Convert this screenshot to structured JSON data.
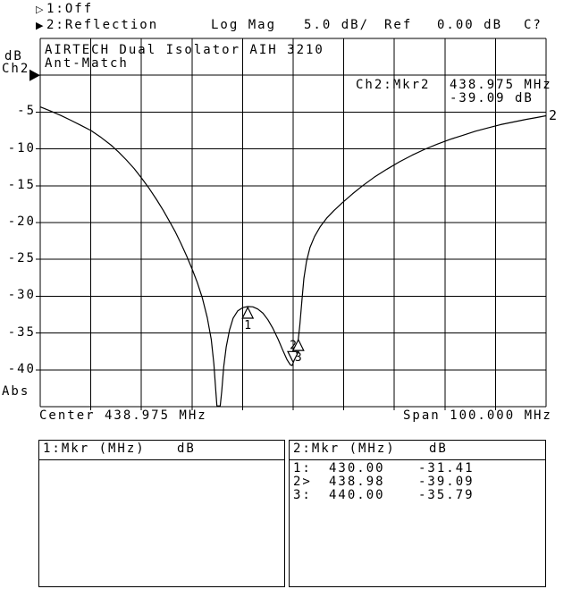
{
  "status_bar": {
    "channel1": {
      "icon": "▷",
      "label": "1:Off"
    },
    "channel2": {
      "icon": "▶",
      "label": "2:Reflection"
    },
    "format": "Log Mag",
    "scale": "5.0 dB/",
    "ref_label": "Ref",
    "ref_value": "0.00 dB",
    "cal_status": "C?"
  },
  "left_labels": {
    "unit": "dB",
    "channel": "Ch2",
    "bottom": "Abs"
  },
  "plot": {
    "title_line1": "AIRTECH Dual Isolator AIH 3210",
    "title_line2": "Ant-Match",
    "marker_readout": {
      "label": "Ch2:Mkr2",
      "freq": "438.975 MHz",
      "value": "-39.09 dB"
    },
    "center": "Center 438.975 MHz",
    "span": "Span 100.000 MHz",
    "y_tick_labels": [
      "-5",
      "-10",
      "-15",
      "-20",
      "-25",
      "-30",
      "-35",
      "-40"
    ]
  },
  "chart_data": {
    "type": "line",
    "title": "AIRTECH Dual Isolator AIH 3210",
    "subtitle": "Ant-Match",
    "xlabel": "Frequency (MHz), Center 438.975 MHz, Span 100.000 MHz",
    "ylabel": "Reflection Log Mag (dB), 5.0 dB/div, Ref 0.00 dB",
    "x_range": [
      388.975,
      488.975
    ],
    "y_range": [
      -45,
      5
    ],
    "x_divisions": 10,
    "y_divisions": 10,
    "ref_level": 0,
    "grid": true,
    "trace_number": "2",
    "points": [
      [
        388.975,
        -4.3
      ],
      [
        391,
        -4.85
      ],
      [
        393,
        -5.45
      ],
      [
        395,
        -6.1
      ],
      [
        397,
        -6.8
      ],
      [
        399,
        -7.5
      ],
      [
        401,
        -8.45
      ],
      [
        403,
        -9.5
      ],
      [
        404.5,
        -10.45
      ],
      [
        406,
        -11.5
      ],
      [
        407.5,
        -12.65
      ],
      [
        409,
        -13.95
      ],
      [
        410.5,
        -15.35
      ],
      [
        412,
        -16.9
      ],
      [
        413.3,
        -18.35
      ],
      [
        414.5,
        -19.8
      ],
      [
        415.7,
        -21.3
      ],
      [
        416.8,
        -22.85
      ],
      [
        417.9,
        -24.5
      ],
      [
        419,
        -26.3
      ],
      [
        420,
        -28.1
      ],
      [
        421,
        -30.2
      ],
      [
        422,
        -32.9
      ],
      [
        422.8,
        -35.9
      ],
      [
        423.3,
        -39.2
      ],
      [
        423.65,
        -42.6
      ],
      [
        423.9,
        -44.9
      ],
      [
        424.55,
        -44.9
      ],
      [
        424.85,
        -42.9
      ],
      [
        425.25,
        -39.6
      ],
      [
        425.75,
        -36.9
      ],
      [
        426.4,
        -34.6
      ],
      [
        427.1,
        -33.0
      ],
      [
        428,
        -32.0
      ],
      [
        429,
        -31.55
      ],
      [
        430,
        -31.41
      ],
      [
        431,
        -31.45
      ],
      [
        432,
        -31.75
      ],
      [
        433,
        -32.3
      ],
      [
        434,
        -33.2
      ],
      [
        435,
        -34.4
      ],
      [
        436,
        -35.85
      ],
      [
        437,
        -37.45
      ],
      [
        437.8,
        -38.65
      ],
      [
        438.4,
        -39.3
      ],
      [
        438.75,
        -39.4
      ],
      [
        438.98,
        -39.09
      ],
      [
        439.3,
        -38.3
      ],
      [
        439.65,
        -37.0
      ],
      [
        440,
        -35.79
      ],
      [
        440.3,
        -33.9
      ],
      [
        440.7,
        -30.6
      ],
      [
        441.1,
        -27.6
      ],
      [
        441.6,
        -25.3
      ],
      [
        442.3,
        -23.4
      ],
      [
        443.2,
        -21.9
      ],
      [
        444.3,
        -20.6
      ],
      [
        445.6,
        -19.4
      ],
      [
        447,
        -18.4
      ],
      [
        448.8,
        -17.25
      ],
      [
        450.7,
        -16.1
      ],
      [
        452.7,
        -15.0
      ],
      [
        455,
        -13.85
      ],
      [
        457.5,
        -12.75
      ],
      [
        460,
        -11.75
      ],
      [
        462.5,
        -10.85
      ],
      [
        465,
        -10.05
      ],
      [
        467.5,
        -9.35
      ],
      [
        470,
        -8.7
      ],
      [
        472.5,
        -8.15
      ],
      [
        475,
        -7.6
      ],
      [
        477.5,
        -7.15
      ],
      [
        480,
        -6.7
      ],
      [
        482.5,
        -6.35
      ],
      [
        485,
        -6.0
      ],
      [
        487,
        -5.75
      ],
      [
        488.975,
        -5.5
      ]
    ],
    "markers": [
      {
        "n": "1",
        "freq": 430.0,
        "db": -31.41,
        "active": false
      },
      {
        "n": "2",
        "freq": 438.98,
        "db": -39.09,
        "active": true
      },
      {
        "n": "3",
        "freq": 440.0,
        "db": -35.79,
        "active": false
      }
    ]
  },
  "marker_tables": {
    "left": {
      "header": "1:Mkr (MHz)",
      "header_unit": "dB",
      "rows": []
    },
    "right": {
      "header": "2:Mkr (MHz)",
      "header_unit": "dB",
      "rows": [
        {
          "id": "1:",
          "freq": "430.00",
          "db": "-31.41"
        },
        {
          "id": "2>",
          "freq": "438.98",
          "db": "-39.09"
        },
        {
          "id": "3:",
          "freq": "440.00",
          "db": "-35.79"
        }
      ]
    }
  }
}
